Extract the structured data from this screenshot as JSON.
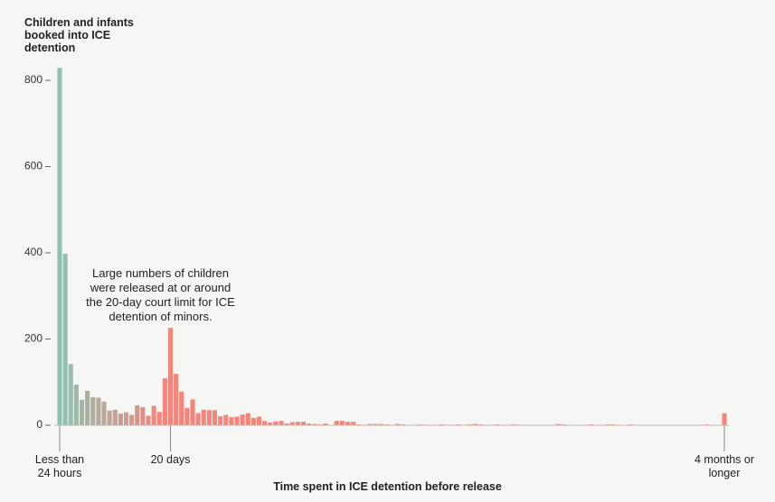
{
  "chart_data": {
    "type": "bar",
    "y_label": "Children and infants booked into ICE detention",
    "x_label": "Time spent in ICE detention before release",
    "annotation": "Large numbers of children were released at or around the 20-day court limit for ICE detention of minors.",
    "categories": [
      "Less than 24 hours",
      null,
      null,
      null,
      null,
      null,
      null,
      null,
      null,
      null,
      null,
      null,
      null,
      null,
      null,
      null,
      null,
      null,
      null,
      null,
      "20 days",
      null,
      null,
      null,
      null,
      null,
      null,
      null,
      null,
      null,
      null,
      null,
      null,
      null,
      null,
      null,
      null,
      null,
      null,
      null,
      null,
      null,
      null,
      null,
      null,
      null,
      null,
      null,
      null,
      null,
      null,
      null,
      null,
      null,
      null,
      null,
      null,
      null,
      null,
      null,
      null,
      null,
      null,
      null,
      null,
      null,
      null,
      null,
      null,
      null,
      null,
      null,
      null,
      null,
      null,
      null,
      null,
      null,
      null,
      null,
      null,
      null,
      null,
      null,
      null,
      null,
      null,
      null,
      null,
      null,
      null,
      null,
      null,
      null,
      null,
      null,
      null,
      null,
      null,
      null,
      null,
      null,
      null,
      null,
      null,
      null,
      null,
      null,
      null,
      null,
      null,
      null,
      null,
      null,
      null,
      null,
      null,
      null,
      null,
      null,
      "4 months or longer"
    ],
    "values": [
      829,
      398,
      142,
      94,
      59,
      80,
      65,
      64,
      55,
      34,
      36,
      27,
      30,
      24,
      46,
      42,
      22,
      45,
      31,
      109,
      226,
      119,
      78,
      40,
      60,
      28,
      36,
      35,
      35,
      21,
      24,
      19,
      20,
      25,
      28,
      17,
      20,
      10,
      6,
      9,
      10,
      4,
      7,
      8,
      8,
      4,
      3,
      2,
      4,
      1,
      10,
      10,
      8,
      8,
      2,
      1,
      3,
      3,
      3,
      2,
      1,
      3,
      2,
      0,
      1,
      2,
      1,
      1,
      1,
      2,
      1,
      0,
      2,
      1,
      2,
      3,
      2,
      1,
      1,
      2,
      1,
      1,
      2,
      1,
      1,
      1,
      0,
      1,
      1,
      1,
      3,
      2,
      1,
      1,
      1,
      0,
      2,
      1,
      1,
      2,
      2,
      1,
      0,
      2,
      0,
      1,
      1,
      1,
      1,
      1,
      1,
      0,
      1,
      1,
      1,
      0,
      1,
      2,
      1,
      1,
      28
    ],
    "colors": [
      "#8fc1b3",
      "#f4857a"
    ],
    "ylim": [
      0,
      830
    ],
    "yticks": [
      0,
      200,
      400,
      600,
      800
    ],
    "grid": false
  }
}
